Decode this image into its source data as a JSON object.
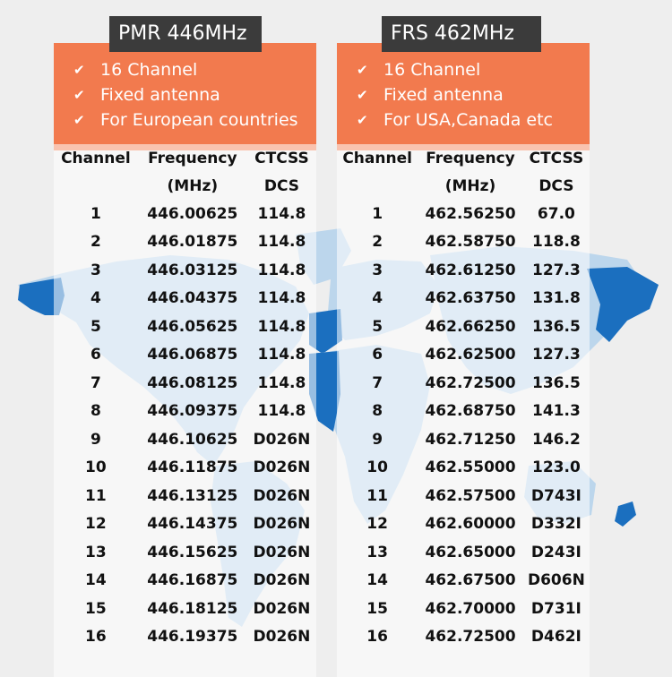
{
  "colors": {
    "background": "#eeeeee",
    "map_light": "#bcd6ec",
    "map_dark": "#1b6fbf",
    "feature_box": "#f27a4e",
    "tag_box": "#3b3b3b"
  },
  "icons": {
    "feature_bullet": "check-icon"
  },
  "pmr": {
    "tag": "PMR 446MHz",
    "features": [
      "16 Channel",
      "Fixed antenna",
      "For European countries"
    ],
    "headers": {
      "channel": "Channel",
      "frequency": "Frequency",
      "frequency_unit": "(MHz)",
      "ctcss": "CTCSS",
      "dcs": "DCS"
    },
    "rows": [
      [
        "1",
        "446.00625",
        "114.8"
      ],
      [
        "2",
        "446.01875",
        "114.8"
      ],
      [
        "3",
        "446.03125",
        "114.8"
      ],
      [
        "4",
        "446.04375",
        "114.8"
      ],
      [
        "5",
        "446.05625",
        "114.8"
      ],
      [
        "6",
        "446.06875",
        "114.8"
      ],
      [
        "7",
        "446.08125",
        "114.8"
      ],
      [
        "8",
        "446.09375",
        "114.8"
      ],
      [
        "9",
        "446.10625",
        "D026N"
      ],
      [
        "10",
        "446.11875",
        "D026N"
      ],
      [
        "11",
        "446.13125",
        "D026N"
      ],
      [
        "12",
        "446.14375",
        "D026N"
      ],
      [
        "13",
        "446.15625",
        "D026N"
      ],
      [
        "14",
        "446.16875",
        "D026N"
      ],
      [
        "15",
        "446.18125",
        "D026N"
      ],
      [
        "16",
        "446.19375",
        "D026N"
      ]
    ]
  },
  "frs": {
    "tag": "FRS 462MHz",
    "features": [
      "16 Channel",
      "Fixed antenna",
      "For USA,Canada etc"
    ],
    "headers": {
      "channel": "Channel",
      "frequency": "Frequency",
      "frequency_unit": "(MHz)",
      "ctcss": "CTCSS",
      "dcs": "DCS"
    },
    "rows": [
      [
        "1",
        "462.56250",
        "67.0"
      ],
      [
        "2",
        "462.58750",
        "118.8"
      ],
      [
        "3",
        "462.61250",
        "127.3"
      ],
      [
        "4",
        "462.63750",
        "131.8"
      ],
      [
        "5",
        "462.66250",
        "136.5"
      ],
      [
        "6",
        "462.62500",
        "127.3"
      ],
      [
        "7",
        "462.72500",
        "136.5"
      ],
      [
        "8",
        "462.68750",
        "141.3"
      ],
      [
        "9",
        "462.71250",
        "146.2"
      ],
      [
        "10",
        "462.55000",
        "123.0"
      ],
      [
        "11",
        "462.57500",
        "D743I"
      ],
      [
        "12",
        "462.60000",
        "D332I"
      ],
      [
        "13",
        "462.65000",
        "D243I"
      ],
      [
        "14",
        "462.67500",
        "D606N"
      ],
      [
        "15",
        "462.70000",
        "D731I"
      ],
      [
        "16",
        "462.72500",
        "D462I"
      ]
    ]
  }
}
